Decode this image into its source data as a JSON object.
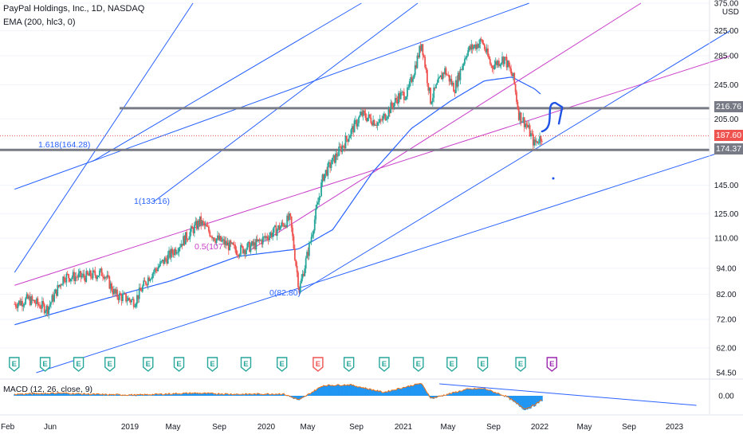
{
  "header": {
    "title": "PayPal Holdings, Inc., 1D, NASDAQ",
    "indicator": "EMA (200, hlc3, 0)",
    "currency": "USD"
  },
  "colors": {
    "candle_up": "#26a69a",
    "candle_down": "#ef5350",
    "ema": "#2962ff",
    "trendline": "#2962ff",
    "channel": "#c93fc9",
    "level": "#787b86",
    "fib_text": "#2962ff",
    "last_price": "#ef5350",
    "macd_hist": "#2196f3",
    "macd_line": "#ff6d00",
    "earnings": "#26a69a",
    "earnings_next": "#9c27b0"
  },
  "chart_data": {
    "type": "candlestick",
    "symbol": "PYPL",
    "timeframe": "1D",
    "y_scale": "log",
    "y_range": [
      54.5,
      375
    ],
    "y_ticks": [
      62,
      72,
      82,
      94,
      110,
      125,
      145,
      205,
      245,
      285,
      325,
      375
    ],
    "partial_tick_label": "54.50",
    "x_ticks": [
      "Feb",
      "Jun",
      "2019",
      "May",
      "Sep",
      "2020",
      "May",
      "Sep",
      "2021",
      "May",
      "Sep",
      "2022",
      "May",
      "Sep",
      "2023"
    ],
    "price_path": [
      [
        "2018-02-01",
        78
      ],
      [
        "2018-03-10",
        80
      ],
      [
        "2018-05-01",
        76
      ],
      [
        "2018-06-15",
        90
      ],
      [
        "2018-08-15",
        90
      ],
      [
        "2018-10-01",
        92
      ],
      [
        "2018-11-01",
        82
      ],
      [
        "2018-12-24",
        79
      ],
      [
        "2019-02-01",
        90
      ],
      [
        "2019-04-15",
        104
      ],
      [
        "2019-06-20",
        120
      ],
      [
        "2019-08-01",
        110
      ],
      [
        "2019-10-01",
        103
      ],
      [
        "2019-11-15",
        106
      ],
      [
        "2020-01-15",
        115
      ],
      [
        "2020-02-20",
        122
      ],
      [
        "2020-03-16",
        84
      ],
      [
        "2020-04-15",
        108
      ],
      [
        "2020-05-20",
        152
      ],
      [
        "2020-07-15",
        180
      ],
      [
        "2020-09-01",
        210
      ],
      [
        "2020-10-20",
        200
      ],
      [
        "2020-12-10",
        230
      ],
      [
        "2021-01-05",
        235
      ],
      [
        "2021-02-12",
        305
      ],
      [
        "2021-03-08",
        226
      ],
      [
        "2021-04-15",
        265
      ],
      [
        "2021-05-12",
        240
      ],
      [
        "2021-06-15",
        292
      ],
      [
        "2021-07-26",
        308
      ],
      [
        "2021-08-20",
        270
      ],
      [
        "2021-09-25",
        282
      ],
      [
        "2021-10-20",
        252
      ],
      [
        "2021-11-03",
        210
      ],
      [
        "2021-11-25",
        198
      ],
      [
        "2021-12-15",
        180
      ],
      [
        "2022-01-05",
        187.6
      ]
    ],
    "ema_200_path": [
      [
        "2018-02-01",
        70
      ],
      [
        "2018-10-01",
        80
      ],
      [
        "2019-04-01",
        88
      ],
      [
        "2019-10-01",
        100
      ],
      [
        "2020-03-15",
        104
      ],
      [
        "2020-06-15",
        115
      ],
      [
        "2020-10-01",
        155
      ],
      [
        "2021-01-15",
        195
      ],
      [
        "2021-05-01",
        225
      ],
      [
        "2021-08-01",
        250
      ],
      [
        "2021-10-15",
        255
      ],
      [
        "2021-12-15",
        240
      ],
      [
        "2022-01-05",
        232
      ]
    ],
    "horizontal_levels": [
      {
        "value": 216.76,
        "label": "216.76"
      },
      {
        "value": 174.37,
        "label": "174.37"
      }
    ],
    "last_price": {
      "value": 187.6,
      "label": "187.60"
    },
    "fib_labels": [
      {
        "text": "1.618(164.28)",
        "value": 164.28
      },
      {
        "text": "1(133.16)",
        "value": 133.16
      },
      {
        "text": "0.5(107",
        "value": 107
      },
      {
        "text": "0(82.80)",
        "value": 82.8
      }
    ],
    "trendlines": [
      {
        "kind": "channel",
        "from": [
          "2018-02-01",
          86
        ],
        "to": [
          "2023-06-01",
          285
        ]
      },
      {
        "kind": "channel",
        "from": [
          "2019-11-01",
          103
        ],
        "to": [
          "2022-10-01",
          375
        ]
      },
      {
        "kind": "support",
        "from": [
          "2018-04-01",
          54.5
        ],
        "to": [
          "2023-06-01",
          175
        ]
      },
      {
        "kind": "support",
        "from": [
          "2020-03-16",
          82.8
        ],
        "to": [
          "2023-06-01",
          325
        ]
      },
      {
        "kind": "parallel",
        "from": [
          "2018-02-01",
          92
        ],
        "to": [
          "2019-06-01",
          375
        ]
      },
      {
        "kind": "parallel",
        "from": [
          "2018-02-01",
          142
        ],
        "to": [
          "2021-12-01",
          375
        ]
      },
      {
        "kind": "parallel",
        "from": [
          "2018-09-01",
          164.28
        ],
        "to": [
          "2020-09-01",
          375
        ]
      },
      {
        "kind": "parallel",
        "from": [
          "2019-02-15",
          133.16
        ],
        "to": [
          "2021-02-01",
          375
        ]
      }
    ],
    "projection_arrow": [
      [
        "2022-01-05",
        192
      ],
      [
        "2022-02-10",
        223
      ],
      [
        "2022-03-01",
        218
      ],
      [
        "2022-02-20",
        200
      ]
    ],
    "earnings_markers": [
      "2018-01-31",
      "2018-04-25",
      "2018-07-25",
      "2018-10-18",
      "2019-01-30",
      "2019-04-24",
      "2019-07-24",
      "2019-10-23",
      "2020-01-29",
      "2020-05-06",
      "2020-07-29",
      "2020-11-02",
      "2021-02-03",
      "2021-05-05",
      "2021-07-28",
      "2021-11-08",
      "2022-02-01"
    ],
    "earnings_marker_label": "E",
    "macd": {
      "legend": "MACD (12, 26, close, 9)",
      "tick_label": "0.00",
      "histogram": [
        [
          "2018-02-01",
          0.3
        ],
        [
          "2018-06-01",
          0.6
        ],
        [
          "2018-10-01",
          0.2
        ],
        [
          "2019-01-01",
          0.1
        ],
        [
          "2019-06-01",
          0.6
        ],
        [
          "2019-10-01",
          0.3
        ],
        [
          "2020-02-01",
          0.4
        ],
        [
          "2020-03-16",
          -1.2
        ],
        [
          "2020-05-20",
          2.6
        ],
        [
          "2020-08-01",
          2.8
        ],
        [
          "2020-11-01",
          0.8
        ],
        [
          "2021-02-10",
          3.2
        ],
        [
          "2021-03-10",
          -0.8
        ],
        [
          "2021-06-15",
          1.6
        ],
        [
          "2021-08-01",
          1.8
        ],
        [
          "2021-10-01",
          -0.3
        ],
        [
          "2021-11-20",
          -3.6
        ],
        [
          "2021-12-15",
          -2.6
        ],
        [
          "2022-01-05",
          -1.2
        ]
      ],
      "trendline": {
        "from": [
          "2021-04-01",
          3.0
        ],
        "to": [
          "2023-03-01",
          -2.4
        ]
      }
    }
  }
}
